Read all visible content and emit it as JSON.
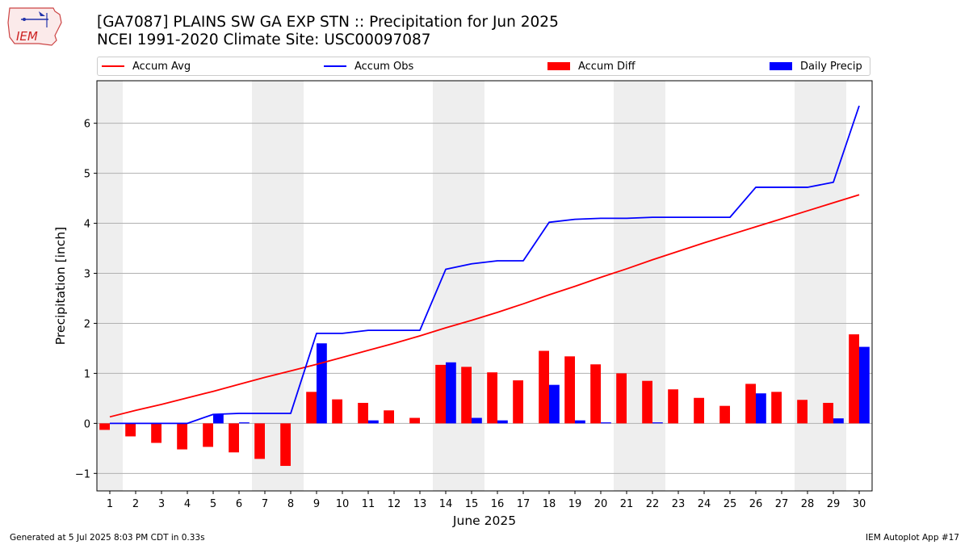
{
  "logo_text": "IEM",
  "title_line1": "[GA7087] PLAINS SW GA EXP STN :: Precipitation for Jun 2025",
  "title_line2": "NCEI 1991-2020 Climate Site: USC00097087",
  "legend": [
    {
      "label": "Accum Avg",
      "color": "#ff0000",
      "kind": "line"
    },
    {
      "label": "Accum Obs",
      "color": "#0000ff",
      "kind": "line"
    },
    {
      "label": "Accum Diff",
      "color": "#ff0000",
      "kind": "bar"
    },
    {
      "label": "Daily Precip",
      "color": "#0000ff",
      "kind": "bar"
    }
  ],
  "footer_left": "Generated at 5 Jul 2025 8:03 PM CDT in 0.33s",
  "footer_right": "IEM Autoplot App #17",
  "chart_data": {
    "type": "bar",
    "xlabel": "June 2025",
    "ylabel": "Precipitation [inch]",
    "ylim": [
      -1.35,
      6.85
    ],
    "yticks": [
      -1,
      0,
      1,
      2,
      3,
      4,
      5,
      6
    ],
    "xlim": [
      0.5,
      30.5
    ],
    "weekend_shading": [
      [
        0.5,
        1.5
      ],
      [
        6.5,
        8.5
      ],
      [
        13.5,
        15.5
      ],
      [
        20.5,
        22.5
      ],
      [
        27.5,
        29.5
      ]
    ],
    "grid": "horizontal",
    "x": [
      1,
      2,
      3,
      4,
      5,
      6,
      7,
      8,
      9,
      10,
      11,
      12,
      13,
      14,
      15,
      16,
      17,
      18,
      19,
      20,
      21,
      22,
      23,
      24,
      25,
      26,
      27,
      28,
      29,
      30
    ],
    "series": [
      {
        "name": "Accum Avg",
        "type": "line",
        "color": "#ff0000",
        "values": [
          0.13,
          0.26,
          0.38,
          0.51,
          0.64,
          0.78,
          0.92,
          1.05,
          1.18,
          1.32,
          1.46,
          1.6,
          1.75,
          1.91,
          2.06,
          2.22,
          2.39,
          2.57,
          2.74,
          2.92,
          3.09,
          3.27,
          3.44,
          3.61,
          3.77,
          3.93,
          4.09,
          4.25,
          4.41,
          4.57
        ]
      },
      {
        "name": "Accum Obs",
        "type": "line",
        "color": "#0000ff",
        "values": [
          0.0,
          0.0,
          0.0,
          0.0,
          0.18,
          0.2,
          0.2,
          0.2,
          1.8,
          1.8,
          1.86,
          1.86,
          1.86,
          3.08,
          3.19,
          3.25,
          3.25,
          4.02,
          4.08,
          4.1,
          4.1,
          4.12,
          4.12,
          4.12,
          4.12,
          4.72,
          4.72,
          4.72,
          4.82,
          6.35
        ]
      },
      {
        "name": "Accum Diff",
        "type": "bar",
        "color": "#ff0000",
        "values": [
          -0.13,
          -0.26,
          -0.39,
          -0.52,
          -0.47,
          -0.58,
          -0.71,
          -0.85,
          0.63,
          0.48,
          0.41,
          0.26,
          0.11,
          1.17,
          1.13,
          1.02,
          0.86,
          1.45,
          1.34,
          1.18,
          1.0,
          0.85,
          0.68,
          0.51,
          0.35,
          0.79,
          0.63,
          0.47,
          0.41,
          1.78
        ]
      },
      {
        "name": "Daily Precip",
        "type": "bar",
        "color": "#0000ff",
        "values": [
          0.0,
          0.0,
          0.0,
          0.0,
          0.18,
          0.02,
          0.0,
          0.0,
          1.6,
          0.0,
          0.06,
          0.0,
          0.0,
          1.22,
          0.11,
          0.06,
          0.0,
          0.77,
          0.06,
          0.02,
          0.0,
          0.02,
          0.0,
          0.0,
          0.0,
          0.6,
          0.0,
          0.0,
          0.1,
          1.53
        ]
      }
    ]
  }
}
